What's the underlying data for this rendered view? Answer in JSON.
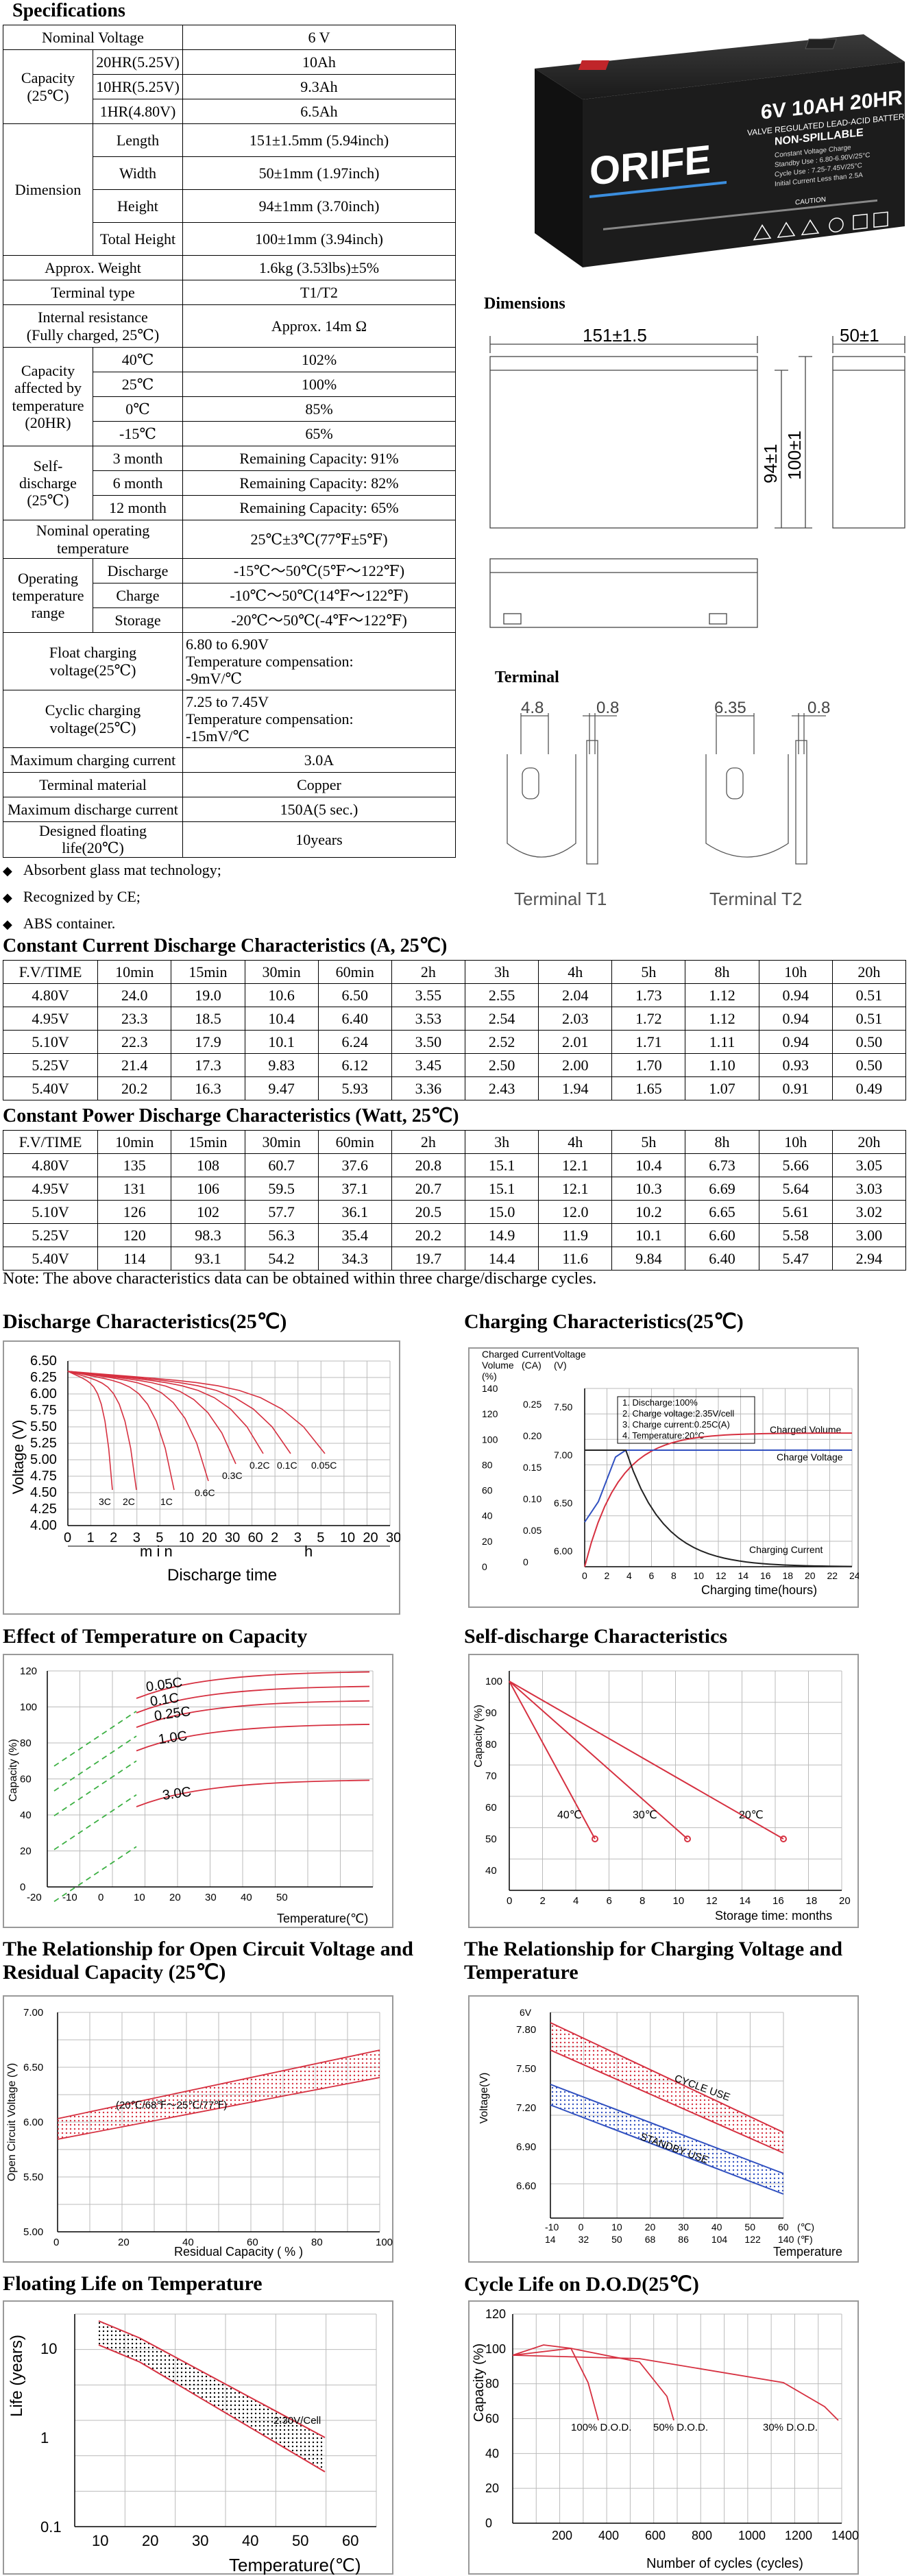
{
  "spec": {
    "title": "Specifications",
    "rows": [
      [
        "Nominal Voltage",
        "6 V"
      ],
      [
        "Capacity (25℃)",
        "20HR(5.25V)",
        "10Ah"
      ],
      [
        "",
        "10HR(5.25V)",
        "9.3Ah"
      ],
      [
        "",
        "1HR(4.80V)",
        "6.5Ah"
      ]
    ],
    "nominal_voltage_label": "Nominal Voltage",
    "nominal_voltage": "6 V",
    "capacity_label": "Capacity",
    "capacity_label2": "(25℃)",
    "capacity": [
      {
        "rate": "20HR(5.25V)",
        "value": "10Ah"
      },
      {
        "rate": "10HR(5.25V)",
        "value": "9.3Ah"
      },
      {
        "rate": "1HR(4.80V)",
        "value": "6.5Ah"
      }
    ],
    "dimension_label": "Dimension",
    "dimension": [
      {
        "name": "Length",
        "value": "151±1.5mm (5.94inch)"
      },
      {
        "name": "Width",
        "value": "50±1mm (1.97inch)"
      },
      {
        "name": "Height",
        "value": "94±1mm (3.70inch)"
      },
      {
        "name": "Total Height",
        "value": "100±1mm (3.94inch)"
      }
    ],
    "weight_label": "Approx. Weight",
    "weight": "1.6kg (3.53lbs)±5%",
    "terminal_type_label": "Terminal type",
    "terminal_type": "T1/T2",
    "resistance_label1": "Internal resistance",
    "resistance_label2": "(Fully charged, 25℃)",
    "resistance": "Approx. 14m Ω",
    "cap_temp_label": [
      "Capacity",
      "affected by",
      "temperature",
      "(20HR)"
    ],
    "cap_temp": [
      {
        "t": "40℃",
        "v": "102%"
      },
      {
        "t": "25℃",
        "v": "100%"
      },
      {
        "t": "0℃",
        "v": "85%"
      },
      {
        "t": "-15℃",
        "v": "65%"
      }
    ],
    "self_dis_label": [
      "Self-discharge",
      "(25℃)"
    ],
    "self_dis": [
      {
        "t": "3 month",
        "v": "Remaining Capacity: 91%"
      },
      {
        "t": "6 month",
        "v": "Remaining Capacity: 82%"
      },
      {
        "t": "12 month",
        "v": "Remaining Capacity: 65%"
      }
    ],
    "nominal_op_label1": "Nominal operating",
    "nominal_op_label2": "temperature",
    "nominal_op": "25℃±3℃(77℉±5℉)",
    "op_range_label": [
      "Operating",
      "temperature",
      "range"
    ],
    "op_range": [
      {
        "t": "Discharge",
        "v": "-15℃～50℃(5℉～122℉)"
      },
      {
        "t": "Charge",
        "v": "-10℃～50℃(14℉～122℉)"
      },
      {
        "t": "Storage",
        "v": "-20℃～50℃(-4℉～122℉)"
      }
    ],
    "float_label": "Float charging voltage(25℃)",
    "float_v": [
      "6.80 to 6.90V",
      "Temperature compensation:",
      "-9mV/℃"
    ],
    "cyclic_label": "Cyclic charging voltage(25℃)",
    "cyclic_v": [
      "7.25 to 7.45V",
      "Temperature compensation:",
      "-15mV/℃"
    ],
    "max_charge_label": "Maximum charging current",
    "max_charge": "3.0A",
    "terminal_mat_label": "Terminal material",
    "terminal_mat": "Copper",
    "max_dis_label": "Maximum discharge current",
    "max_dis": "150A(5 sec.)",
    "life_label": "Designed floating life(20℃)",
    "life": "10years"
  },
  "bullets": [
    "Absorbent glass mat technology;",
    "Recognized by CE;",
    "ABS container."
  ],
  "product": {
    "brand": "ORIFE",
    "model": "6V 10AH 20HR",
    "subtitle": "VALVE REGULATED LEAD-ACID BATTERY",
    "subtitle2": "NON-SPILLABLE",
    "lines": [
      "Constant Voltage Charge",
      "Standby Use : 6.80-6.90V/25°C",
      "Cycle Use : 7.25-7.45V/25°C",
      "Initial Current Less than 2.5A"
    ],
    "caution": "CAUTION",
    "body_color": "#1c1c1c"
  },
  "dimensions": {
    "title": "Dimensions",
    "length": "151±1.5",
    "width": "50±1",
    "height": "94±1",
    "total": "100±1"
  },
  "terminal": {
    "title": "Terminal",
    "t1_dims": [
      "4.8",
      "0.8"
    ],
    "t2_dims": [
      "6.35",
      "0.8"
    ],
    "t1_label": "Terminal T1",
    "t2_label": "Terminal T2"
  },
  "cc_table": {
    "title": "Constant Current Discharge Characteristics (A, 25℃)",
    "header": [
      "F.V/TIME",
      "10min",
      "15min",
      "30min",
      "60min",
      "2h",
      "3h",
      "4h",
      "5h",
      "8h",
      "10h",
      "20h"
    ],
    "rows": [
      [
        "4.80V",
        "24.0",
        "19.0",
        "10.6",
        "6.50",
        "3.55",
        "2.55",
        "2.04",
        "1.73",
        "1.12",
        "0.94",
        "0.51"
      ],
      [
        "4.95V",
        "23.3",
        "18.5",
        "10.4",
        "6.40",
        "3.53",
        "2.54",
        "2.03",
        "1.72",
        "1.12",
        "0.94",
        "0.51"
      ],
      [
        "5.10V",
        "22.3",
        "17.9",
        "10.1",
        "6.24",
        "3.50",
        "2.52",
        "2.01",
        "1.71",
        "1.11",
        "0.94",
        "0.50"
      ],
      [
        "5.25V",
        "21.4",
        "17.3",
        "9.83",
        "6.12",
        "3.45",
        "2.50",
        "2.00",
        "1.70",
        "1.10",
        "0.93",
        "0.50"
      ],
      [
        "5.40V",
        "20.2",
        "16.3",
        "9.47",
        "5.93",
        "3.36",
        "2.43",
        "1.94",
        "1.65",
        "1.07",
        "0.91",
        "0.49"
      ]
    ]
  },
  "cp_table": {
    "title": "Constant Power Discharge Characteristics (Watt, 25℃)",
    "header": [
      "F.V/TIME",
      "10min",
      "15min",
      "30min",
      "60min",
      "2h",
      "3h",
      "4h",
      "5h",
      "8h",
      "10h",
      "20h"
    ],
    "rows": [
      [
        "4.80V",
        "135",
        "108",
        "60.7",
        "37.6",
        "20.8",
        "15.1",
        "12.1",
        "10.4",
        "6.73",
        "5.66",
        "3.05"
      ],
      [
        "4.95V",
        "131",
        "106",
        "59.5",
        "37.1",
        "20.7",
        "15.1",
        "12.1",
        "10.3",
        "6.69",
        "5.64",
        "3.03"
      ],
      [
        "5.10V",
        "126",
        "102",
        "57.7",
        "36.1",
        "20.5",
        "15.0",
        "12.0",
        "10.2",
        "6.65",
        "5.61",
        "3.02"
      ],
      [
        "5.25V",
        "120",
        "98.3",
        "56.3",
        "35.4",
        "20.2",
        "14.9",
        "11.9",
        "10.1",
        "6.60",
        "5.58",
        "3.00"
      ],
      [
        "5.40V",
        "114",
        "93.1",
        "54.2",
        "34.3",
        "19.7",
        "14.4",
        "11.6",
        "9.84",
        "6.40",
        "5.47",
        "2.94"
      ]
    ]
  },
  "note": "Note: The above characteristics data can be obtained within three charge/discharge cycles.",
  "charts": {
    "discharge": {
      "title": "Discharge Characteristics(25℃)",
      "ylabel": "Voltage (V)",
      "yticks": [
        "6.50",
        "6.25",
        "6.00",
        "5.75",
        "5.50",
        "5.25",
        "5.00",
        "4.75",
        "4.50",
        "4.25",
        "4.00"
      ],
      "xticks": [
        "0",
        "1",
        "2",
        "3",
        "5",
        "10",
        "20",
        "30",
        "60",
        "2",
        "3",
        "5",
        "10",
        "20",
        "30"
      ],
      "curve_labels": [
        "3C",
        "2C",
        "1C",
        "0.6C",
        "0.3C",
        "0.2C",
        "0.1C",
        "0.05C"
      ],
      "min_label": "m i n",
      "h_label": "h",
      "xlabel": "Discharge time"
    },
    "charging": {
      "title": "Charging Characteristics(25℃)",
      "axis1_label": [
        "Charged",
        "Volume",
        "(%)"
      ],
      "axis2_label": [
        "Current",
        "(CA)"
      ],
      "axis3_label": [
        "Voltage",
        "(V)"
      ],
      "y1ticks": [
        "140",
        "120",
        "100",
        "80",
        "60",
        "40",
        "20",
        "0"
      ],
      "y2ticks": [
        "0.25",
        "0.20",
        "0.15",
        "0.10",
        "0.05",
        "0"
      ],
      "y3ticks": [
        "7.50",
        "7.00",
        "6.50",
        "6.00"
      ],
      "xticks": [
        "0",
        "2",
        "4",
        "6",
        "8",
        "10",
        "12",
        "14",
        "16",
        "18",
        "20",
        "22",
        "24"
      ],
      "notes": [
        "1. Discharge:100%",
        "2. Charge voltage:2.35V/cell",
        "3. Charge current:0.25C(A)",
        "4. Temperature:20°C"
      ],
      "label_volume": "Charged Volume",
      "label_voltage": "Charge Voltage",
      "label_current": "Charging Current",
      "xlabel": "Charging time(hours)"
    },
    "temp_capacity": {
      "title": "Effect of Temperature on Capacity",
      "ylabel": "Capacity (%)",
      "yticks": [
        "120",
        "100",
        "80",
        "60",
        "40",
        "20",
        "0"
      ],
      "xticks": [
        "-20",
        "-10",
        "0",
        "10",
        "20",
        "30",
        "40",
        "50"
      ],
      "curve_labels": [
        "0.05C",
        "0.1C",
        "0.25C",
        "1.0C",
        "3.0C"
      ],
      "xlabel": "Temperature(℃)"
    },
    "self_discharge": {
      "title": "Self-discharge Characteristics",
      "ylabel": "Capacity (%)",
      "yticks": [
        "100",
        "90",
        "80",
        "70",
        "60",
        "50",
        "40"
      ],
      "xticks": [
        "0",
        "2",
        "4",
        "6",
        "8",
        "10",
        "12",
        "14",
        "16",
        "18",
        "20"
      ],
      "curve_labels": [
        "40℃",
        "30℃",
        "20℃"
      ],
      "xlabel": "Storage time: months"
    },
    "ocv": {
      "title": "The Relationship for Open Circuit Voltage and Residual Capacity (25℃)",
      "ylabel": "Open Circuit Voltage (V)",
      "yticks": [
        "7.00",
        "6.50",
        "6.00",
        "5.50",
        "5.00"
      ],
      "xticks": [
        "0",
        "20",
        "40",
        "60",
        "80",
        "100"
      ],
      "band_label": "(20℃/68℉～25℃/77℉)",
      "xlabel": "Residual Capacity ( % )"
    },
    "charge_voltage": {
      "title": "The Relationship for Charging Voltage and Temperature",
      "ylabel": "Voltage(V)",
      "unit_label": "6V",
      "yticks": [
        "7.80",
        "7.50",
        "7.20",
        "6.90",
        "6.60"
      ],
      "xticks_c": [
        "-10",
        "0",
        "10",
        "20",
        "30",
        "40",
        "50",
        "60"
      ],
      "xticks_f": [
        "14",
        "32",
        "50",
        "68",
        "86",
        "104",
        "122",
        "140"
      ],
      "unit_c": "(℃)",
      "unit_f": "(℉)",
      "cycle_label": "CYCLE USE",
      "standby_label": "STANDBY USE",
      "xlabel": "Temperature"
    },
    "float_life": {
      "title": "Floating Life on Temperature",
      "ylabel": "Life (years)",
      "yticks": [
        "10",
        "1",
        "0.1"
      ],
      "xticks": [
        "10",
        "20",
        "30",
        "40",
        "50",
        "60"
      ],
      "band_label": "2.30V/Cell",
      "xlabel": "Temperature(℃)"
    },
    "cycle_life": {
      "title": "Cycle Life on D.O.D(25℃)",
      "ylabel": "Capacity (%)",
      "yticks": [
        "120",
        "100",
        "80",
        "60",
        "40",
        "20",
        "0"
      ],
      "xticks": [
        "200",
        "400",
        "600",
        "800",
        "1000",
        "1200",
        "1400"
      ],
      "curve_labels": [
        "100% D.O.D.",
        "50% D.O.D.",
        "30% D.O.D."
      ],
      "xlabel": "Number of cycles (cycles)"
    }
  },
  "colors": {
    "curve": "#d63040",
    "green": "#3cb043",
    "blue": "#3050c0",
    "grid": "#bbbbbb"
  }
}
